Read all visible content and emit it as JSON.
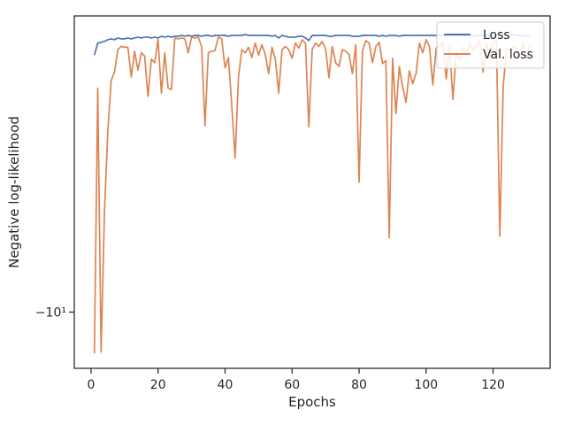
{
  "chart_data": {
    "type": "line",
    "xlabel": "Epochs",
    "ylabel": "Negative log-likelihood",
    "xlim": [
      -5,
      137
    ],
    "xticks": [
      0,
      20,
      40,
      60,
      80,
      100,
      120
    ],
    "xtick_labels": [
      "0",
      "20",
      "40",
      "60",
      "80",
      "100",
      "120"
    ],
    "yscale": "symlog",
    "ylim": [
      -14,
      -1.7
    ],
    "yticks": [
      -10
    ],
    "ytick_labels": [
      "−10¹"
    ],
    "grid": false,
    "legend_position": "upper-right",
    "series": [
      {
        "name": "Loss",
        "color": "#4c72b0",
        "x": [
          1,
          2,
          3,
          4,
          5,
          6,
          7,
          8,
          9,
          10,
          11,
          12,
          13,
          14,
          15,
          16,
          17,
          18,
          19,
          20,
          21,
          22,
          23,
          24,
          25,
          26,
          27,
          28,
          29,
          30,
          31,
          32,
          33,
          34,
          35,
          36,
          37,
          38,
          39,
          40,
          41,
          42,
          43,
          44,
          45,
          46,
          47,
          48,
          49,
          50,
          51,
          52,
          53,
          54,
          55,
          56,
          57,
          58,
          59,
          60,
          61,
          62,
          63,
          64,
          65,
          66,
          67,
          68,
          69,
          70,
          71,
          72,
          73,
          74,
          75,
          76,
          77,
          78,
          79,
          80,
          81,
          82,
          83,
          84,
          85,
          86,
          87,
          88,
          89,
          90,
          91,
          92,
          93,
          94,
          95,
          96,
          97,
          98,
          99,
          100,
          101,
          102,
          103,
          104,
          105,
          106,
          107,
          108,
          109,
          110,
          111,
          112,
          113,
          114,
          115,
          116,
          117,
          118,
          119,
          120,
          121,
          122,
          123,
          124,
          125,
          126,
          127,
          128,
          129,
          130,
          131
        ],
        "values": [
          -2.15,
          -2.0,
          -1.99,
          -1.98,
          -1.96,
          -1.95,
          -1.96,
          -1.94,
          -1.95,
          -1.95,
          -1.94,
          -1.95,
          -1.94,
          -1.93,
          -1.94,
          -1.93,
          -1.93,
          -1.94,
          -1.93,
          -1.94,
          -1.92,
          -1.93,
          -1.92,
          -1.93,
          -1.92,
          -1.92,
          -1.91,
          -1.92,
          -1.91,
          -1.92,
          -1.91,
          -1.91,
          -1.92,
          -1.91,
          -1.91,
          -1.92,
          -1.91,
          -1.91,
          -1.91,
          -1.91,
          -1.92,
          -1.91,
          -1.91,
          -1.91,
          -1.91,
          -1.9,
          -1.91,
          -1.91,
          -1.91,
          -1.91,
          -1.91,
          -1.91,
          -1.91,
          -1.92,
          -1.91,
          -1.94,
          -1.91,
          -1.92,
          -1.93,
          -1.93,
          -1.93,
          -1.92,
          -1.92,
          -1.94,
          -1.97,
          -1.91,
          -1.91,
          -1.91,
          -1.91,
          -1.91,
          -1.92,
          -1.92,
          -1.91,
          -1.91,
          -1.91,
          -1.91,
          -1.91,
          -1.92,
          -1.92,
          -1.92,
          -1.91,
          -1.91,
          -1.91,
          -1.91,
          -1.91,
          -1.92,
          -1.91,
          -1.92,
          -1.91,
          -1.91,
          -1.91,
          -1.92,
          -1.91,
          -1.91,
          -1.91,
          -1.91,
          -1.91,
          -1.91,
          -1.91,
          -1.91,
          -1.91,
          -1.91,
          -1.91,
          -1.91,
          -1.91,
          -1.92,
          -1.91,
          -1.91,
          -1.91,
          -1.91,
          -1.91,
          -1.91,
          -1.91,
          -1.92,
          -1.91,
          -1.91,
          -1.91,
          -1.91,
          -1.91,
          -1.91,
          -1.91,
          -1.9,
          -1.9,
          -1.91,
          -1.91,
          -1.9,
          -1.91,
          -1.91,
          -1.92,
          -1.91,
          -1.91
        ]
      },
      {
        "name": "Val. loss",
        "color": "#dd8452",
        "x": [
          1,
          2,
          3,
          4,
          5,
          6,
          7,
          8,
          9,
          10,
          11,
          12,
          13,
          14,
          15,
          16,
          17,
          18,
          19,
          20,
          21,
          22,
          23,
          24,
          25,
          26,
          27,
          28,
          29,
          30,
          31,
          32,
          33,
          34,
          35,
          36,
          37,
          38,
          39,
          40,
          41,
          42,
          43,
          44,
          45,
          46,
          47,
          48,
          49,
          50,
          51,
          52,
          53,
          54,
          55,
          56,
          57,
          58,
          59,
          60,
          61,
          62,
          63,
          64,
          65,
          66,
          67,
          68,
          69,
          70,
          71,
          72,
          73,
          74,
          75,
          76,
          77,
          78,
          79,
          80,
          81,
          82,
          83,
          84,
          85,
          86,
          87,
          88,
          89,
          90,
          91,
          92,
          93,
          94,
          95,
          96,
          97,
          98,
          99,
          100,
          101,
          102,
          103,
          104,
          105,
          106,
          107,
          108,
          109,
          110,
          111,
          112,
          113,
          114,
          115,
          116,
          117,
          118,
          119,
          120,
          121,
          122,
          123,
          124,
          125,
          126,
          127,
          128,
          129,
          130,
          131
        ],
        "values": [
          -12.8,
          -2.62,
          -12.7,
          -5.5,
          -3.4,
          -2.5,
          -2.38,
          -2.08,
          -2.04,
          -2.05,
          -2.05,
          -2.45,
          -2.1,
          -2.35,
          -2.12,
          -2.16,
          -2.75,
          -2.2,
          -2.25,
          -1.95,
          -2.7,
          -2.12,
          -2.62,
          -2.64,
          -1.94,
          -1.95,
          -1.94,
          -1.95,
          -2.12,
          -1.93,
          -1.94,
          -1.93,
          -2.04,
          -3.28,
          -2.12,
          -2.1,
          -2.09,
          -1.93,
          -1.95,
          -2.32,
          -2.18,
          -2.9,
          -3.98,
          -2.45,
          -2.08,
          -2.12,
          -2.05,
          -2.18,
          -2.0,
          -2.15,
          -2.02,
          -2.14,
          -2.4,
          -2.05,
          -2.2,
          -2.7,
          -2.08,
          -2.04,
          -2.08,
          -2.19,
          -2.0,
          -2.06,
          -1.96,
          -2.0,
          -3.3,
          -2.08,
          -2.0,
          -2.04,
          -1.98,
          -2.07,
          -2.46,
          -2.04,
          -2.25,
          -2.3,
          -2.08,
          -2.1,
          -2.14,
          -2.4,
          -2.02,
          -4.6,
          -2.1,
          -1.97,
          -2.0,
          -2.25,
          -2.04,
          -1.99,
          -2.26,
          -2.22,
          -6.4,
          -2.19,
          -3.05,
          -2.3,
          -2.6,
          -2.85,
          -2.36,
          -2.55,
          -2.4,
          -2.0,
          -2.12,
          -1.96,
          -2.04,
          -2.57,
          -2.06,
          -2.04,
          -2.0,
          -2.48,
          -2.04,
          -2.8,
          -2.12,
          -2.22,
          -2.05,
          -2.12,
          -2.0,
          -2.09,
          -2.04,
          -1.97,
          -2.38,
          -2.0,
          -2.2,
          -1.98,
          -1.99,
          -6.35,
          -2.6,
          -2.07,
          -2.08,
          -2.04,
          -2.06,
          -2.18,
          -2.0,
          -2.22,
          -2.02
        ]
      }
    ]
  }
}
